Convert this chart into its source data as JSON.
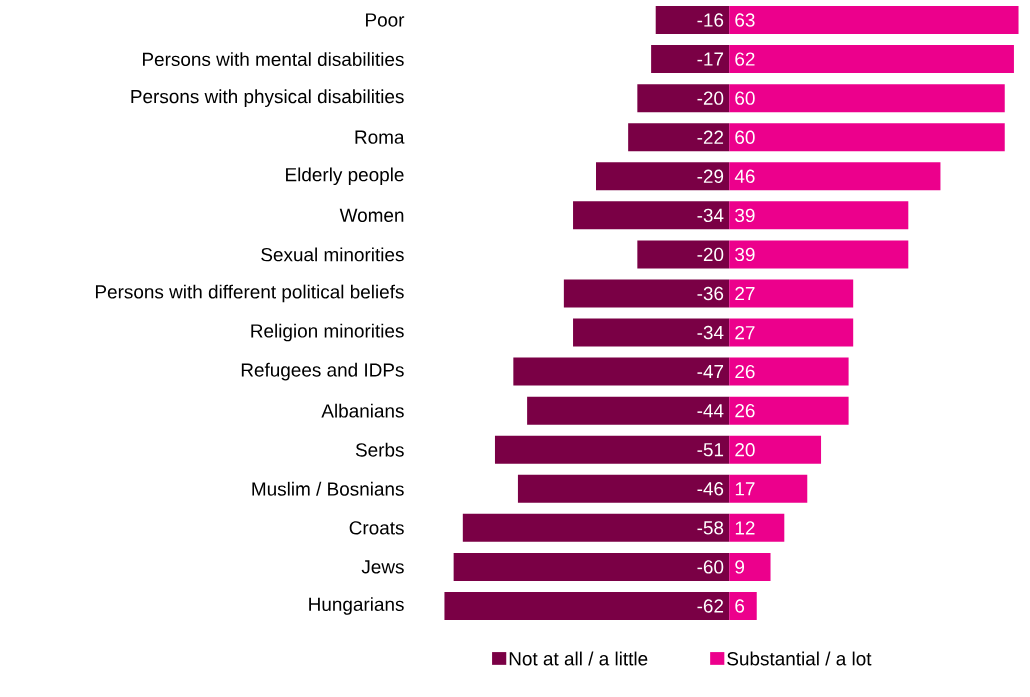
{
  "chart_data": {
    "type": "bar",
    "orientation": "horizontal",
    "categories": [
      "Poor",
      "Persons with mental disabilities",
      "Persons with physical disabilities",
      "Roma",
      "Elderly people",
      "Women",
      "Sexual minorities",
      "Persons with different political beliefs",
      "Religion minorities",
      "Refugees and IDPs",
      "Albanians",
      "Serbs",
      "Muslim / Bosnians",
      "Croats",
      "Jews",
      "Hungarians"
    ],
    "series": [
      {
        "name": "Not at all / a little",
        "color": "#7a0045",
        "values": [
          -16,
          -17,
          -20,
          -22,
          -29,
          -34,
          -20,
          -36,
          -34,
          -47,
          -44,
          -51,
          -46,
          -58,
          -60,
          -62
        ]
      },
      {
        "name": "Substantial / a lot",
        "color": "#ec008c",
        "values": [
          63,
          62,
          60,
          60,
          46,
          39,
          39,
          27,
          27,
          26,
          26,
          20,
          17,
          12,
          9,
          6
        ]
      }
    ],
    "stacked": true,
    "data_labels": true,
    "legend": "bottom"
  }
}
